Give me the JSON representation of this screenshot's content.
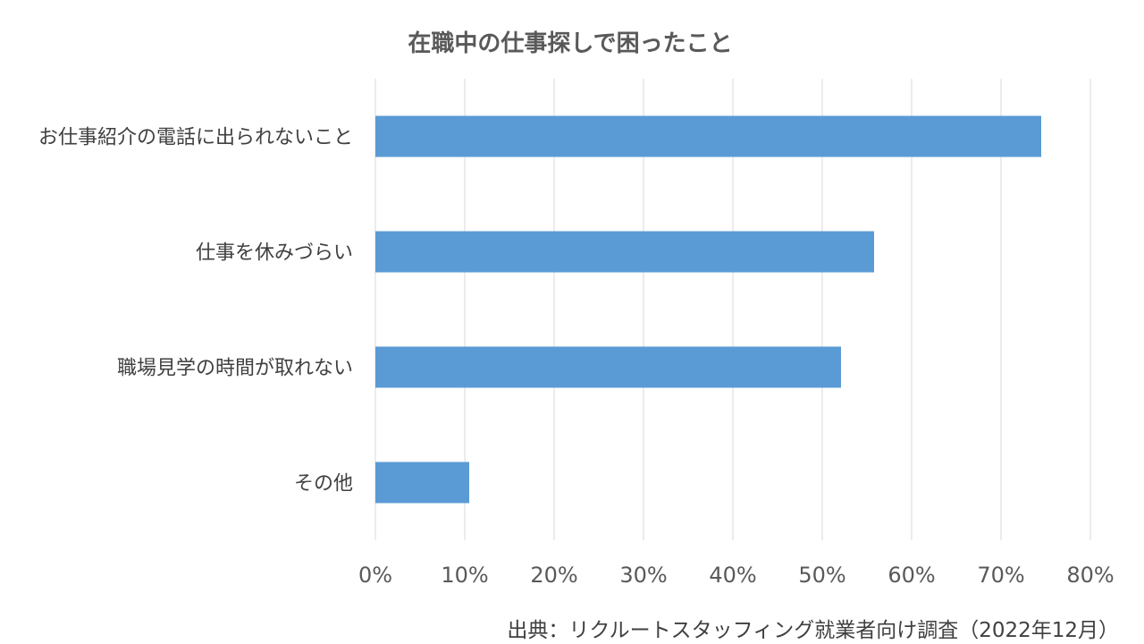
{
  "chart_data": {
    "type": "bar",
    "orientation": "horizontal",
    "title": "在職中の仕事探しで困ったこと",
    "categories": [
      "お仕事紹介の電話に出られないこと",
      "仕事を休みづらい",
      "職場見学の時間が取れない",
      "その他"
    ],
    "values": [
      74.5,
      55.8,
      52.1,
      10.5
    ],
    "xlim": [
      0,
      80
    ],
    "x_ticks": [
      0,
      10,
      20,
      30,
      40,
      50,
      60,
      70,
      80
    ],
    "x_tick_labels": [
      "0%",
      "10%",
      "20%",
      "30%",
      "40%",
      "50%",
      "60%",
      "70%",
      "80%"
    ],
    "xlabel": "",
    "ylabel": "",
    "grid": true,
    "legend": "none",
    "bar_color": "#5B9BD5",
    "grid_color": "#D9D9D9"
  },
  "source": "出典：リクルートスタッフィング就業者向け調査（2022年12月）"
}
